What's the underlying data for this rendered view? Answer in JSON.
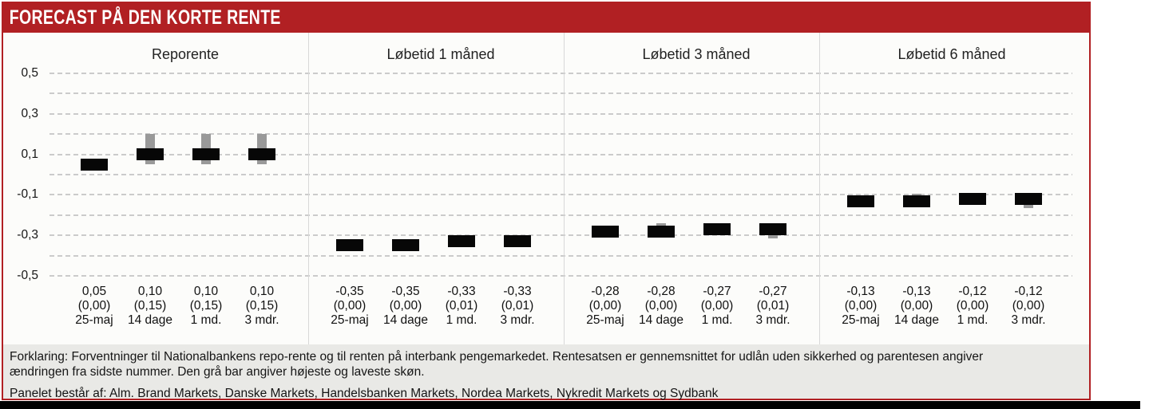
{
  "header": {
    "title": "FORECAST PÅ DEN KORTE RENTE"
  },
  "y_axis": {
    "ticks": [
      "0,5",
      "0,3",
      "0,1",
      "-0,1",
      "-0,3",
      "-0,5"
    ]
  },
  "chart_data": [
    {
      "type": "bar",
      "title": "Reporente",
      "categories": [
        "25-maj",
        "14 dage",
        "1 md.",
        "3 mdr."
      ],
      "values": [
        0.05,
        0.1,
        0.1,
        0.1
      ],
      "value_labels": [
        "0,05",
        "0,10",
        "0,10",
        "0,10"
      ],
      "change_labels": [
        "(0,00)",
        "(0,15)",
        "(0,15)",
        "(0,15)"
      ],
      "ranges": [
        null,
        [
          0.05,
          0.2
        ],
        [
          0.05,
          0.2
        ],
        [
          0.05,
          0.2
        ]
      ],
      "ylim": [
        -0.5,
        0.5
      ],
      "grid_step": 0.1,
      "grid": "dashed"
    },
    {
      "type": "bar",
      "title": "Løbetid 1 måned",
      "categories": [
        "25-maj",
        "14 dage",
        "1 md.",
        "3 mdr."
      ],
      "values": [
        -0.35,
        -0.35,
        -0.33,
        -0.33
      ],
      "value_labels": [
        "-0,35",
        "-0,35",
        "-0,33",
        "-0,33"
      ],
      "change_labels": [
        "(0,00)",
        "(0,00)",
        "(0,01)",
        "(0,01)"
      ],
      "ranges": [
        null,
        null,
        [
          -0.36,
          -0.3
        ],
        [
          -0.36,
          -0.3
        ]
      ],
      "ylim": [
        -0.5,
        0.5
      ],
      "grid_step": 0.1,
      "grid": "dashed"
    },
    {
      "type": "bar",
      "title": "Løbetid 3 måned",
      "categories": [
        "25-maj",
        "14 dage",
        "1 md.",
        "3 mdr."
      ],
      "values": [
        -0.28,
        -0.28,
        -0.27,
        -0.27
      ],
      "value_labels": [
        "-0,28",
        "-0,28",
        "-0,27",
        "-0,27"
      ],
      "change_labels": [
        "(0,00)",
        "(0,00)",
        "(0,00)",
        "(0,01)"
      ],
      "ranges": [
        null,
        [
          -0.3,
          -0.24
        ],
        null,
        [
          -0.315,
          -0.27
        ]
      ],
      "ylim": [
        -0.5,
        0.5
      ],
      "grid_step": 0.1,
      "grid": "dashed"
    },
    {
      "type": "bar",
      "title": "Løbetid 6 måned",
      "categories": [
        "25-maj",
        "14 dage",
        "1 md.",
        "3 mdr."
      ],
      "values": [
        -0.13,
        -0.13,
        -0.12,
        -0.12
      ],
      "value_labels": [
        "-0,13",
        "-0,13",
        "-0,12",
        "-0,12"
      ],
      "change_labels": [
        "(0,00)",
        "(0,00)",
        "(0,00)",
        "(0,00)"
      ],
      "ranges": [
        null,
        [
          -0.16,
          -0.095
        ],
        null,
        [
          -0.165,
          -0.12
        ]
      ],
      "ylim": [
        -0.5,
        0.5
      ],
      "grid_step": 0.1,
      "grid": "dashed"
    }
  ],
  "footer": {
    "explanation_lines": [
      "Forklaring: Forventninger til Nationalbankens repo-rente og til renten på interbank pengemarkedet. Rentesatsen er gennemsnittet for udlån uden sikkerhed og parentesen angiver",
      "ændringen fra sidste nummer. Den grå bar angiver højeste og laveste skøn."
    ],
    "panel_line": "Panelet består af: Alm. Brand Markets, Danske Markets, Handelsbanken Markets, Nordea Markets, Nykredit Markets og Sydbank"
  },
  "colors": {
    "accent_red": "#b12023",
    "bar_black": "#070707",
    "range_gray": "#999999",
    "footer_bg": "#e9e9e6",
    "grid_gray": "#cbcbcb"
  }
}
